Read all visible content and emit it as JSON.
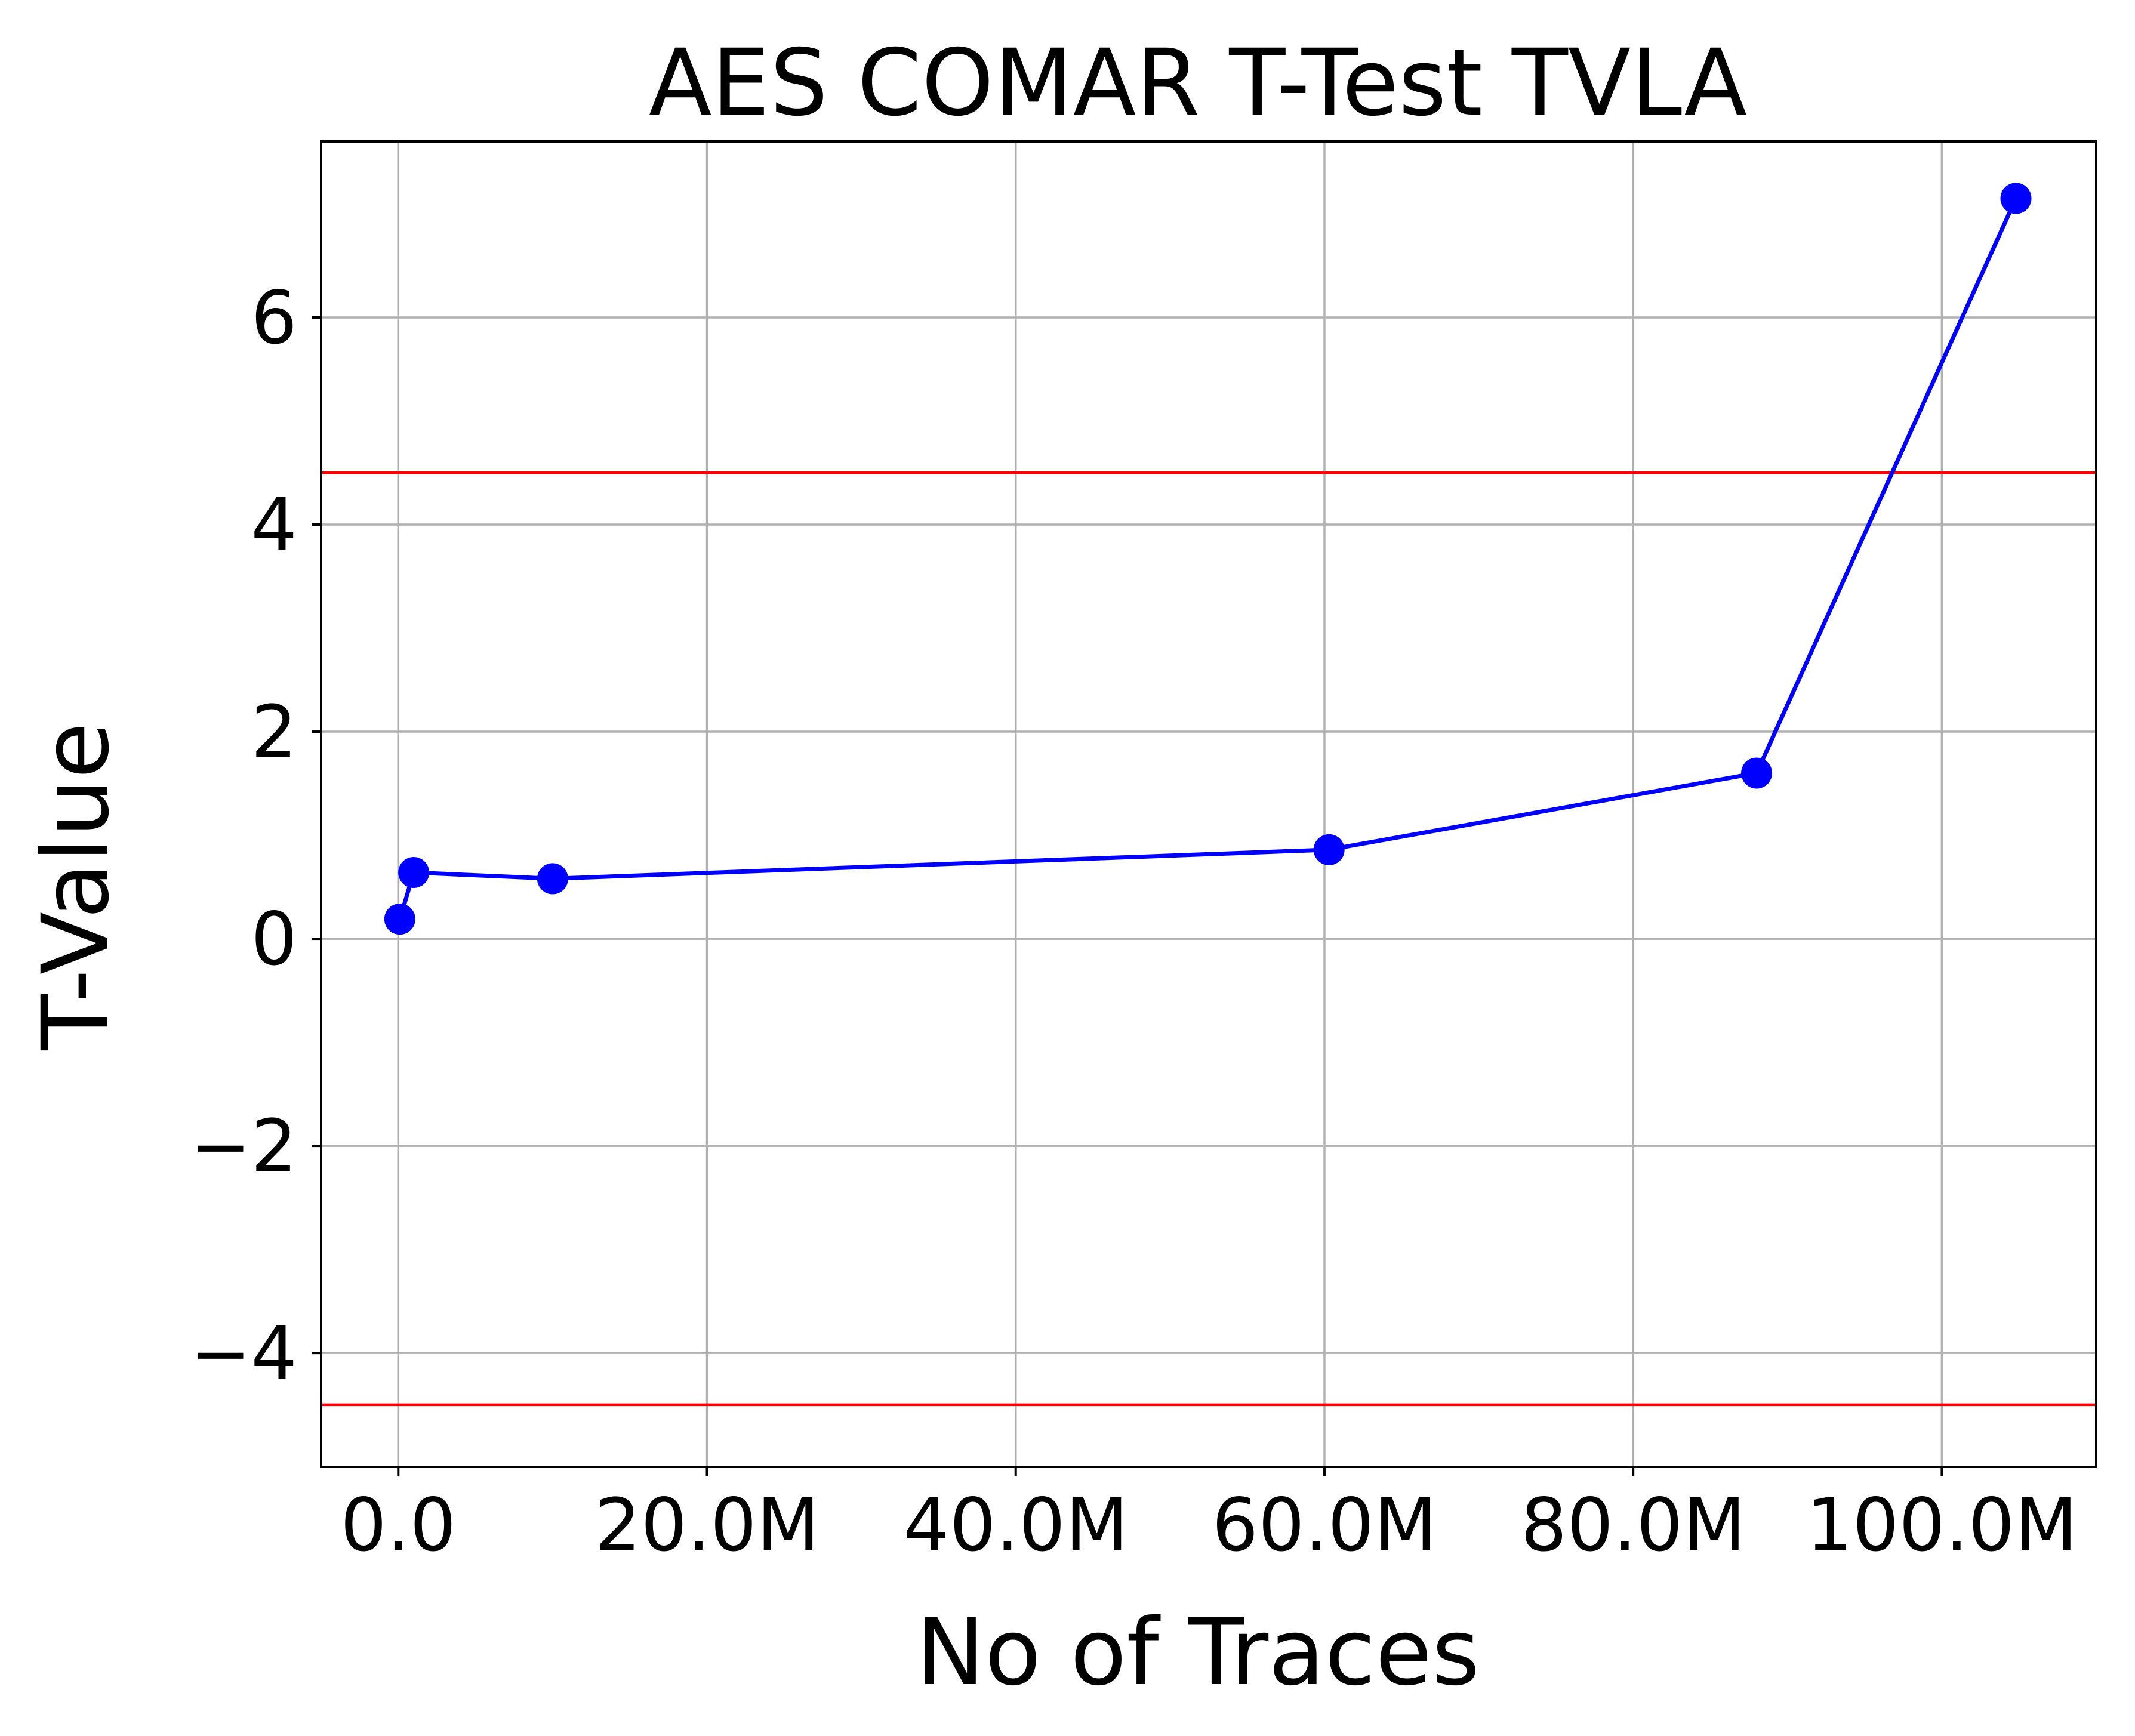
{
  "chart_data": {
    "type": "line",
    "title": "AES COMAR T-Test TVLA",
    "xlabel": "No of Traces",
    "ylabel": "T-Value",
    "xlim": [
      -5000000,
      110000000
    ],
    "ylim": [
      -5.1,
      7.7
    ],
    "x_ticks": [
      {
        "value": 0,
        "label": "0.0"
      },
      {
        "value": 20000000,
        "label": "20.0M"
      },
      {
        "value": 40000000,
        "label": "40.0M"
      },
      {
        "value": 60000000,
        "label": "60.0M"
      },
      {
        "value": 80000000,
        "label": "80.0M"
      },
      {
        "value": 100000000,
        "label": "100.0M"
      }
    ],
    "y_ticks": [
      {
        "value": -4,
        "label": "−4"
      },
      {
        "value": -2,
        "label": "−2"
      },
      {
        "value": 0,
        "label": "0"
      },
      {
        "value": 2,
        "label": "2"
      },
      {
        "value": 4,
        "label": "4"
      },
      {
        "value": 6,
        "label": "6"
      }
    ],
    "grid": true,
    "series": [
      {
        "color": "#0000ff",
        "marker": "circle",
        "x": [
          100000,
          1000000,
          10000000,
          60300000,
          88000000,
          104800000
        ],
        "y": [
          0.19,
          0.64,
          0.58,
          0.86,
          1.6,
          7.15
        ]
      }
    ],
    "hlines": [
      {
        "y": 4.5,
        "color": "#ff0000"
      },
      {
        "y": -4.5,
        "color": "#ff0000"
      }
    ]
  }
}
